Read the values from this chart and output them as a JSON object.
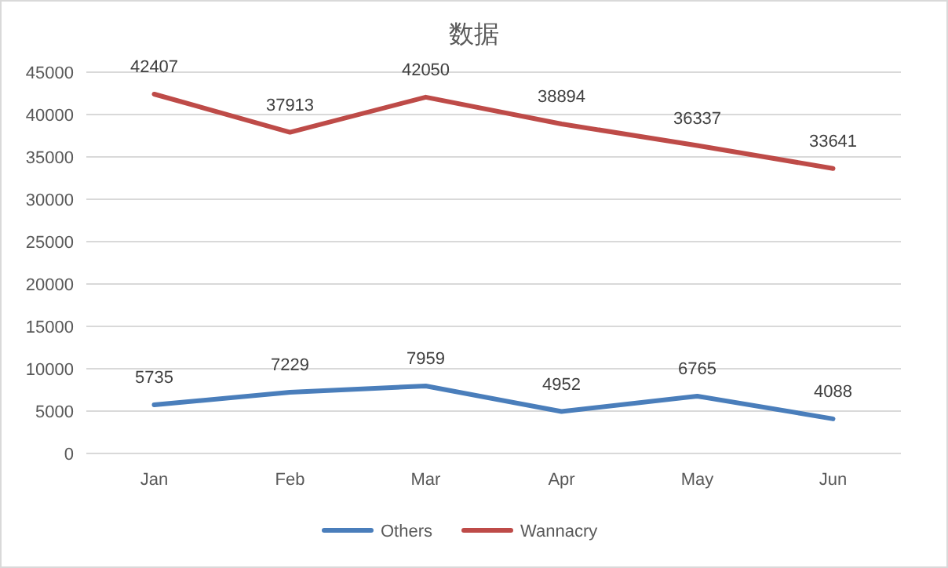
{
  "chart_data": {
    "type": "line",
    "title": "数据",
    "categories": [
      "Jan",
      "Feb",
      "Mar",
      "Apr",
      "May",
      "Jun"
    ],
    "series": [
      {
        "name": "Others",
        "color": "#4a7ebb",
        "values": [
          5735,
          7229,
          7959,
          4952,
          6765,
          4088
        ]
      },
      {
        "name": "Wannacry",
        "color": "#be4b48",
        "values": [
          42407,
          37913,
          42050,
          38894,
          36337,
          33641
        ]
      }
    ],
    "ylim": [
      0,
      45000
    ],
    "yticks": [
      0,
      5000,
      10000,
      15000,
      20000,
      25000,
      30000,
      35000,
      40000,
      45000
    ],
    "grid": "y",
    "legend": "bottom",
    "data_labels": true,
    "line_style": "solid"
  }
}
